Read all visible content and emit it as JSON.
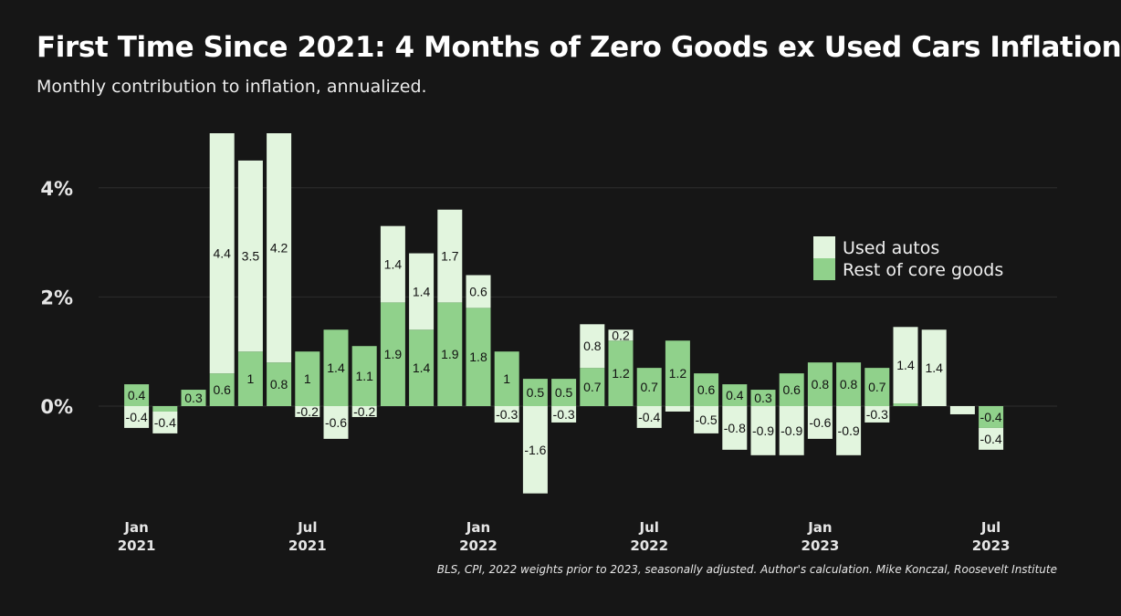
{
  "title": "First Time Since 2021: 4 Months of Zero Goods ex Used Cars Inflation",
  "subtitle": "Monthly contribution to inflation, annualized.",
  "source": "BLS, CPI, 2022 weights prior to 2023, seasonally adjusted. Author's calculation. Mike Konczal, Roosevelt Institute",
  "colors": {
    "background": "#161616",
    "used_autos": "#e2f5de",
    "rest_core": "#90d18b",
    "grid": "#2e2e2e"
  },
  "chart_data": {
    "type": "bar",
    "stacked": true,
    "x": [
      "2021-01",
      "2021-02",
      "2021-03",
      "2021-04",
      "2021-05",
      "2021-06",
      "2021-07",
      "2021-08",
      "2021-09",
      "2021-10",
      "2021-11",
      "2021-12",
      "2022-01",
      "2022-02",
      "2022-03",
      "2022-04",
      "2022-05",
      "2022-06",
      "2022-07",
      "2022-08",
      "2022-09",
      "2022-10",
      "2022-11",
      "2022-12",
      "2023-01",
      "2023-02",
      "2023-03",
      "2023-04",
      "2023-05",
      "2023-06",
      "2023-07"
    ],
    "series": [
      {
        "name": "Used autos",
        "values": [
          -0.4,
          -0.4,
          0.0,
          4.4,
          3.5,
          4.2,
          -0.2,
          -0.6,
          -0.2,
          1.4,
          1.4,
          1.7,
          0.6,
          -0.3,
          -1.6,
          -0.3,
          0.8,
          0.2,
          -0.4,
          -0.1,
          -0.5,
          -0.8,
          -0.9,
          -0.9,
          -0.6,
          -0.9,
          -0.3,
          1.4,
          1.4,
          -0.15,
          -0.4
        ],
        "labels": [
          "-0.4",
          "-0.4",
          "",
          "4.4",
          "3.5",
          "4.2",
          "-0.2",
          "-0.6",
          "-0.2",
          "1.4",
          "1.4",
          "1.7",
          "0.6",
          "-0.3",
          "-1.6",
          "-0.3",
          "0.8",
          "0.2",
          "-0.4",
          "",
          "-0.5",
          "-0.8",
          "-0.9",
          "-0.9",
          "-0.6",
          "-0.9",
          "-0.3",
          "1.4",
          "1.4",
          "",
          "-0.4"
        ]
      },
      {
        "name": "Rest of core goods",
        "values": [
          0.4,
          -0.1,
          0.3,
          0.6,
          1.0,
          0.8,
          1.0,
          1.4,
          1.1,
          1.9,
          1.4,
          1.9,
          1.8,
          1.0,
          0.5,
          0.5,
          0.7,
          1.2,
          0.7,
          1.2,
          0.6,
          0.4,
          0.3,
          0.6,
          0.8,
          0.8,
          0.7,
          0.05,
          0.0,
          0.0,
          -0.4
        ],
        "labels": [
          "0.4",
          "",
          "0.3",
          "0.6",
          "1",
          "0.8",
          "1",
          "1.4",
          "1.1",
          "1.9",
          "1.4",
          "1.9",
          "1.8",
          "1",
          "0.5",
          "0.5",
          "0.7",
          "1.2",
          "0.7",
          "1.2",
          "0.6",
          "0.4",
          "0.3",
          "0.6",
          "0.8",
          "0.8",
          "0.7",
          "",
          "",
          "",
          "-0.4"
        ]
      }
    ],
    "y_ticks": [
      "0%",
      "2%",
      "4%"
    ],
    "y_tick_values": [
      0,
      2,
      4
    ],
    "x_ticks": [
      {
        "month": "Jan",
        "year": "2021",
        "index": 0
      },
      {
        "month": "Jul",
        "year": "2021",
        "index": 6
      },
      {
        "month": "Jan",
        "year": "2022",
        "index": 12
      },
      {
        "month": "Jul",
        "year": "2022",
        "index": 18
      },
      {
        "month": "Jan",
        "year": "2023",
        "index": 24
      },
      {
        "month": "Jul",
        "year": "2023",
        "index": 30
      }
    ],
    "ylim": [
      -1.7,
      5.2
    ],
    "grid": true,
    "legend_position": "right"
  }
}
